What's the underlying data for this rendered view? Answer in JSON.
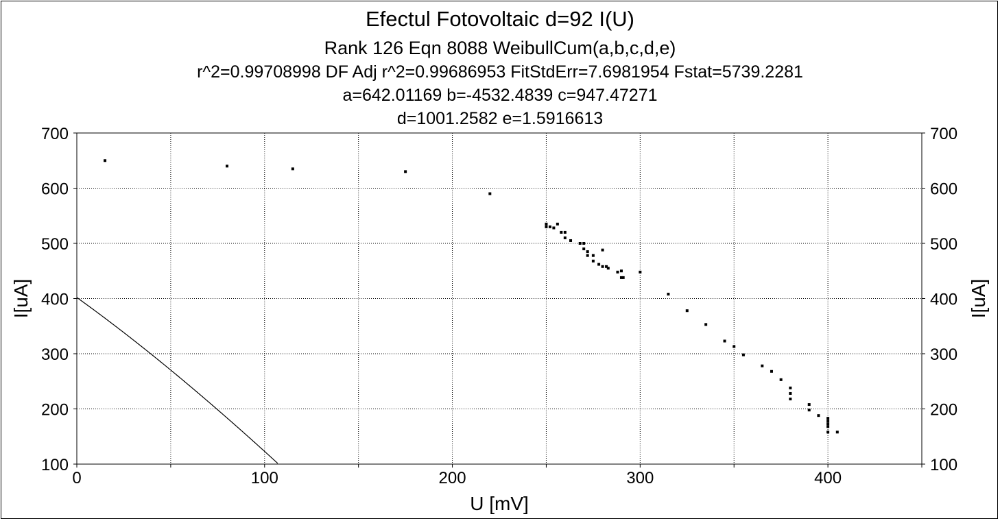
{
  "chart_data": {
    "type": "scatter",
    "title": "Efectul Fotovoltaic d=92 I(U)",
    "subtitle": "Rank 126  Eqn 8088  WeibullCum(a,b,c,d,e)",
    "stats_line": "r^2=0.99708998  DF Adj r^2=0.99686953  FitStdErr=7.6981954  Fstat=5739.2281",
    "params_line1": "a=642.01169 b=-4532.4839 c=947.47271",
    "params_line2": "d=1001.2582 e=1.5916613",
    "xlabel": "U [mV]",
    "ylabel": "I[uA]",
    "ylabel_right": "I[uA]",
    "xlim": [
      0,
      450
    ],
    "ylim": [
      100,
      700
    ],
    "xticks": [
      0,
      100,
      200,
      300,
      400
    ],
    "yticks": [
      100,
      200,
      300,
      400,
      500,
      600,
      700
    ],
    "grid": true,
    "fit": {
      "a": 642.01169,
      "b": -4532.4839,
      "c": 947.47271,
      "d": 1001.2582,
      "e": 1.5916613
    },
    "points": [
      [
        15,
        650
      ],
      [
        80,
        640
      ],
      [
        115,
        635
      ],
      [
        175,
        630
      ],
      [
        220,
        590
      ],
      [
        250,
        535
      ],
      [
        250,
        530
      ],
      [
        252,
        530
      ],
      [
        254,
        528
      ],
      [
        256,
        535
      ],
      [
        258,
        520
      ],
      [
        260,
        520
      ],
      [
        260,
        510
      ],
      [
        263,
        505
      ],
      [
        268,
        500
      ],
      [
        270,
        500
      ],
      [
        270,
        490
      ],
      [
        272,
        485
      ],
      [
        272,
        478
      ],
      [
        275,
        478
      ],
      [
        275,
        468
      ],
      [
        278,
        462
      ],
      [
        280,
        488
      ],
      [
        280,
        458
      ],
      [
        282,
        458
      ],
      [
        283,
        455
      ],
      [
        288,
        448
      ],
      [
        290,
        450
      ],
      [
        290,
        438
      ],
      [
        291,
        438
      ],
      [
        300,
        448
      ],
      [
        315,
        408
      ],
      [
        325,
        378
      ],
      [
        335,
        353
      ],
      [
        345,
        323
      ],
      [
        350,
        313
      ],
      [
        355,
        298
      ],
      [
        365,
        278
      ],
      [
        370,
        268
      ],
      [
        375,
        253
      ],
      [
        380,
        238
      ],
      [
        380,
        228
      ],
      [
        380,
        218
      ],
      [
        390,
        208
      ],
      [
        390,
        198
      ],
      [
        395,
        188
      ],
      [
        400,
        183
      ],
      [
        400,
        178
      ],
      [
        400,
        173
      ],
      [
        400,
        168
      ],
      [
        400,
        158
      ],
      [
        405,
        158
      ]
    ]
  }
}
